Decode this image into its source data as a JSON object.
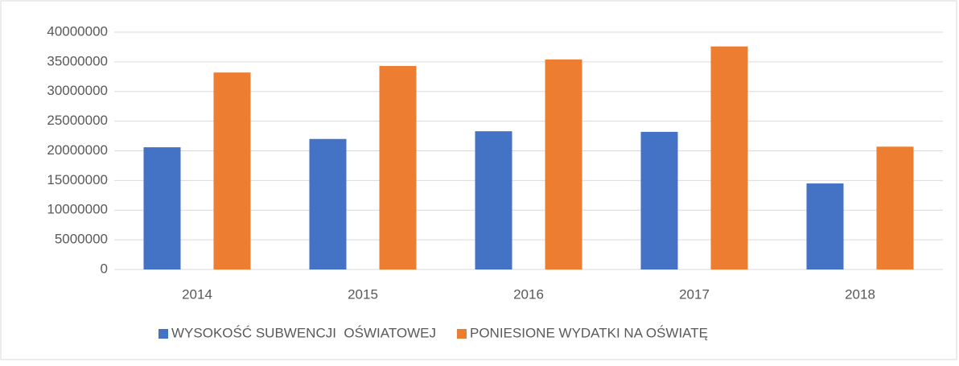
{
  "chart_data": {
    "type": "bar",
    "categories": [
      "2014",
      "2015",
      "2016",
      "2017",
      "2018"
    ],
    "series": [
      {
        "name": "WYSOKOŚĆ SUBWENCJI  OŚWIATOWEJ",
        "color": "#4472c4",
        "values": [
          20600000,
          22000000,
          23300000,
          23200000,
          14500000
        ]
      },
      {
        "name": "PONIESIONE WYDATKI NA OŚWIATĘ",
        "color": "#ed7d31",
        "values": [
          33200000,
          34300000,
          35400000,
          37600000,
          20700000
        ]
      }
    ],
    "ylim": [
      0,
      40000000
    ],
    "yticks": [
      0,
      5000000,
      10000000,
      15000000,
      20000000,
      25000000,
      30000000,
      35000000,
      40000000
    ],
    "grid": true,
    "legend": "bottom"
  }
}
